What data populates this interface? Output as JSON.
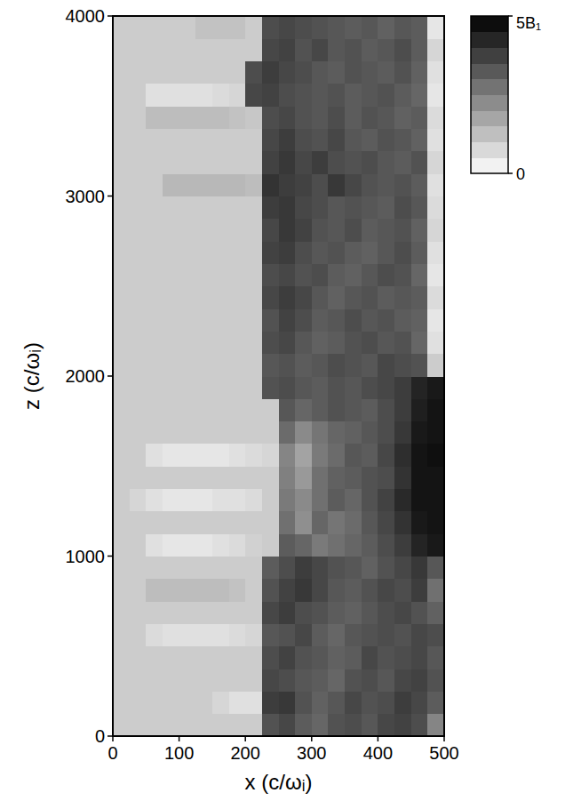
{
  "chart_data": {
    "type": "heatmap",
    "xlabel": "x (c/ωᵢ)",
    "ylabel": "z (c/ωᵢ)",
    "xlim": [
      0,
      500
    ],
    "ylim": [
      0,
      4000
    ],
    "xticks": [
      0,
      100,
      200,
      300,
      400,
      500
    ],
    "yticks": [
      0,
      1000,
      2000,
      3000,
      4000
    ],
    "x_edges": [
      0,
      25,
      50,
      75,
      100,
      125,
      150,
      175,
      200,
      225,
      250,
      275,
      300,
      325,
      350,
      375,
      400,
      425,
      450,
      475,
      500
    ],
    "y_edges": [
      0,
      125,
      250,
      375,
      500,
      625,
      750,
      875,
      1000,
      1125,
      1250,
      1375,
      1500,
      1625,
      1750,
      1875,
      2000,
      2125,
      2250,
      2375,
      2500,
      2625,
      2750,
      2875,
      3000,
      3125,
      3250,
      3375,
      3500,
      3625,
      3750,
      3875,
      4000
    ],
    "cells": [
      [
        1.0,
        1.0,
        1.0,
        1.0,
        1.0,
        1.0,
        1.0,
        1.0,
        1.0,
        3.4,
        3.6,
        3.2,
        3.0,
        3.4,
        3.5,
        3.3,
        3.6,
        3.7,
        3.5,
        2.4
      ],
      [
        1.0,
        1.0,
        1.0,
        1.0,
        1.0,
        1.0,
        0.8,
        0.6,
        0.6,
        3.8,
        3.9,
        3.4,
        3.1,
        3.3,
        3.6,
        3.4,
        3.5,
        3.8,
        3.6,
        3.2
      ],
      [
        1.0,
        1.0,
        1.0,
        1.0,
        1.0,
        1.0,
        1.0,
        1.0,
        1.0,
        3.6,
        3.5,
        3.3,
        3.2,
        3.0,
        3.4,
        3.5,
        3.3,
        3.6,
        3.7,
        3.4
      ],
      [
        1.0,
        1.0,
        1.0,
        1.0,
        1.0,
        1.0,
        1.0,
        1.0,
        1.0,
        3.5,
        3.7,
        3.4,
        3.3,
        3.1,
        3.2,
        3.6,
        3.4,
        3.5,
        3.6,
        3.3
      ],
      [
        1.0,
        1.0,
        0.7,
        0.6,
        0.6,
        0.6,
        0.6,
        0.7,
        0.8,
        3.3,
        3.4,
        3.6,
        3.2,
        3.0,
        3.3,
        3.4,
        3.5,
        3.4,
        3.6,
        3.5
      ],
      [
        1.0,
        1.0,
        1.0,
        1.0,
        1.0,
        1.0,
        1.0,
        1.0,
        1.0,
        3.6,
        3.8,
        3.5,
        3.4,
        3.2,
        3.1,
        3.3,
        3.5,
        3.6,
        3.4,
        3.1
      ],
      [
        1.0,
        1.0,
        1.3,
        1.3,
        1.3,
        1.3,
        1.3,
        1.2,
        1.0,
        3.4,
        3.7,
        3.9,
        3.6,
        3.3,
        3.2,
        3.4,
        3.6,
        3.5,
        3.8,
        2.8
      ],
      [
        1.0,
        1.0,
        1.0,
        1.0,
        1.0,
        1.0,
        1.0,
        1.0,
        1.0,
        3.2,
        3.5,
        3.8,
        3.6,
        3.4,
        3.3,
        3.1,
        3.4,
        3.6,
        3.9,
        3.3
      ],
      [
        1.0,
        1.0,
        0.6,
        0.5,
        0.5,
        0.5,
        0.6,
        0.7,
        0.9,
        1.0,
        3.2,
        3.0,
        2.6,
        2.8,
        3.0,
        3.2,
        3.5,
        3.8,
        4.3,
        4.5
      ],
      [
        1.0,
        1.0,
        1.0,
        1.0,
        1.0,
        1.0,
        1.0,
        1.0,
        1.0,
        1.0,
        2.8,
        2.2,
        3.0,
        2.7,
        2.9,
        3.3,
        3.6,
        4.0,
        4.5,
        4.6
      ],
      [
        1.0,
        0.8,
        0.6,
        0.5,
        0.5,
        0.5,
        0.6,
        0.6,
        0.7,
        1.0,
        2.6,
        2.3,
        2.8,
        3.2,
        3.0,
        3.4,
        3.7,
        4.2,
        4.6,
        4.6
      ],
      [
        1.0,
        1.0,
        1.0,
        1.0,
        1.0,
        1.0,
        1.0,
        1.0,
        1.0,
        1.0,
        2.5,
        2.0,
        2.8,
        3.1,
        3.2,
        3.4,
        3.5,
        4.0,
        4.6,
        4.6
      ],
      [
        1.0,
        1.0,
        0.6,
        0.5,
        0.5,
        0.5,
        0.5,
        0.6,
        0.7,
        0.8,
        2.4,
        1.8,
        2.6,
        2.9,
        3.3,
        3.2,
        3.6,
        4.1,
        4.6,
        4.7
      ],
      [
        1.0,
        1.0,
        1.0,
        1.0,
        1.0,
        1.0,
        1.0,
        1.0,
        1.0,
        1.0,
        2.9,
        2.3,
        2.7,
        3.0,
        3.1,
        3.3,
        3.5,
        3.9,
        4.5,
        4.6
      ],
      [
        1.0,
        1.0,
        1.0,
        1.0,
        1.0,
        1.0,
        1.0,
        1.0,
        1.0,
        1.0,
        3.3,
        3.0,
        3.2,
        3.4,
        3.3,
        3.2,
        3.5,
        3.8,
        4.4,
        4.6
      ],
      [
        1.0,
        1.0,
        1.0,
        1.0,
        1.0,
        1.0,
        1.0,
        1.0,
        1.0,
        3.4,
        3.5,
        3.3,
        3.2,
        3.4,
        3.3,
        3.5,
        3.6,
        3.8,
        4.3,
        4.5
      ],
      [
        1.0,
        1.0,
        1.0,
        1.0,
        1.0,
        1.0,
        1.0,
        1.0,
        1.0,
        3.3,
        3.4,
        3.2,
        3.3,
        3.5,
        3.4,
        3.3,
        3.6,
        3.5,
        3.4,
        1.0
      ],
      [
        1.0,
        1.0,
        1.0,
        1.0,
        1.0,
        1.0,
        1.0,
        1.0,
        1.0,
        3.5,
        3.6,
        3.3,
        3.1,
        3.2,
        3.4,
        3.5,
        3.3,
        3.4,
        3.0,
        0.6
      ],
      [
        1.0,
        1.0,
        1.0,
        1.0,
        1.0,
        1.0,
        1.0,
        1.0,
        1.0,
        3.4,
        3.7,
        3.5,
        3.2,
        3.3,
        3.5,
        3.3,
        3.4,
        3.2,
        3.1,
        0.5
      ],
      [
        1.0,
        1.0,
        1.0,
        1.0,
        1.0,
        1.0,
        1.0,
        1.0,
        1.0,
        3.6,
        3.8,
        3.6,
        3.3,
        3.1,
        3.3,
        3.4,
        3.2,
        3.3,
        3.2,
        0.7
      ],
      [
        1.0,
        1.0,
        1.0,
        1.0,
        1.0,
        1.0,
        1.0,
        1.0,
        1.0,
        3.5,
        3.6,
        3.4,
        3.5,
        3.2,
        3.1,
        3.3,
        3.5,
        3.4,
        3.0,
        0.5
      ],
      [
        1.0,
        1.0,
        1.0,
        1.0,
        1.0,
        1.0,
        1.0,
        1.0,
        1.0,
        3.7,
        3.8,
        3.5,
        3.3,
        3.4,
        3.2,
        3.1,
        3.3,
        3.5,
        3.2,
        0.6
      ],
      [
        1.0,
        1.0,
        1.0,
        1.0,
        1.0,
        1.0,
        1.0,
        1.0,
        1.0,
        3.6,
        3.9,
        3.7,
        3.4,
        3.3,
        3.5,
        3.2,
        3.3,
        3.4,
        3.1,
        0.8
      ],
      [
        1.0,
        1.0,
        1.0,
        1.0,
        1.0,
        1.0,
        1.0,
        1.0,
        1.0,
        3.8,
        3.9,
        3.6,
        3.5,
        3.3,
        3.4,
        3.3,
        3.2,
        3.5,
        3.3,
        0.7
      ],
      [
        1.0,
        1.0,
        1.0,
        1.4,
        1.4,
        1.4,
        1.4,
        1.4,
        1.3,
        4.0,
        3.8,
        3.7,
        3.5,
        3.9,
        3.6,
        3.4,
        3.3,
        3.4,
        3.2,
        0.6
      ],
      [
        1.0,
        1.0,
        1.0,
        1.0,
        1.0,
        1.0,
        1.0,
        1.0,
        1.0,
        3.7,
        3.9,
        3.6,
        3.8,
        3.5,
        3.4,
        3.5,
        3.3,
        3.2,
        3.4,
        0.8
      ],
      [
        1.0,
        1.0,
        1.0,
        1.0,
        1.0,
        1.0,
        1.0,
        1.0,
        1.0,
        3.6,
        3.8,
        3.5,
        3.4,
        3.6,
        3.3,
        3.2,
        3.4,
        3.3,
        3.1,
        0.6
      ],
      [
        1.0,
        1.0,
        1.3,
        1.3,
        1.3,
        1.3,
        1.3,
        1.2,
        1.1,
        3.5,
        3.6,
        3.4,
        3.3,
        3.5,
        3.2,
        3.4,
        3.3,
        3.1,
        3.2,
        0.7
      ],
      [
        1.0,
        1.0,
        0.6,
        0.6,
        0.6,
        0.6,
        0.7,
        0.8,
        3.6,
        3.7,
        3.5,
        3.4,
        3.3,
        3.4,
        3.2,
        3.3,
        3.4,
        3.2,
        3.0,
        0.5
      ],
      [
        1.0,
        1.0,
        1.0,
        1.0,
        1.0,
        1.0,
        1.0,
        1.0,
        3.5,
        3.8,
        3.6,
        3.5,
        3.3,
        3.2,
        3.4,
        3.3,
        3.2,
        3.4,
        3.1,
        0.6
      ],
      [
        1.0,
        1.0,
        1.0,
        1.0,
        1.0,
        1.0,
        1.0,
        1.0,
        1.0,
        3.6,
        3.7,
        3.4,
        3.6,
        3.3,
        3.4,
        3.2,
        3.3,
        3.5,
        3.2,
        0.8
      ],
      [
        1.0,
        1.0,
        1.0,
        1.0,
        1.0,
        1.2,
        1.2,
        1.2,
        1.0,
        3.5,
        3.6,
        3.5,
        3.4,
        3.3,
        3.2,
        3.3,
        3.1,
        3.3,
        3.2,
        0.5
      ]
    ],
    "colorbar_range": [
      0,
      5
    ],
    "colorbar_ticks": [
      0,
      {
        "value": 5,
        "label": "5B₁"
      }
    ]
  }
}
